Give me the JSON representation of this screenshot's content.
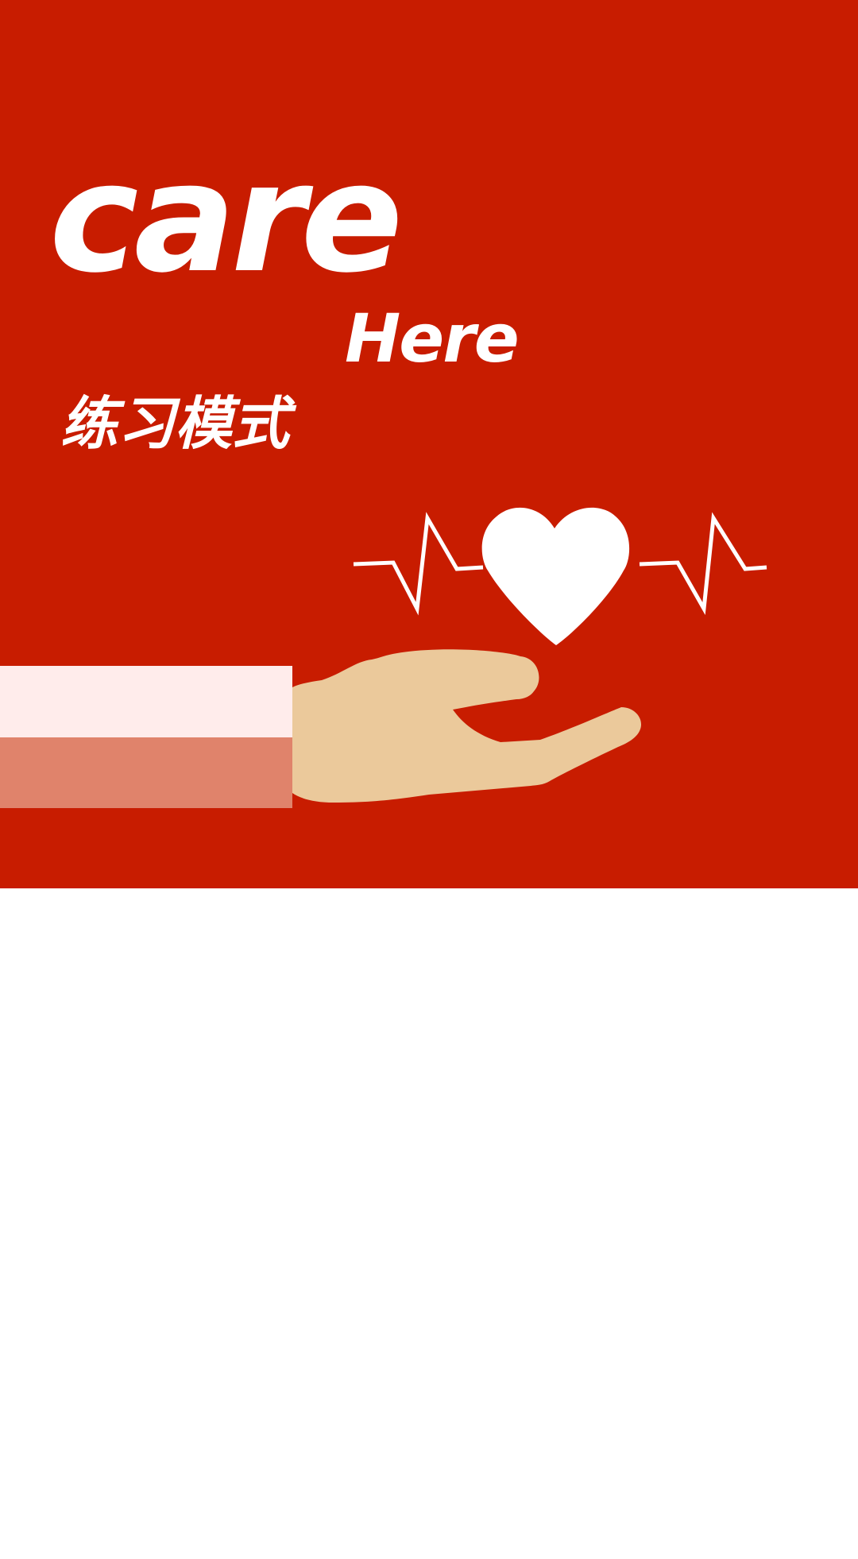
{
  "splash": {
    "logo_word_1": "care",
    "logo_word_2": "Here",
    "mode_title": "练习模式",
    "colors": {
      "background": "#c81c00",
      "text": "#ffffff",
      "heart": "#ffffff",
      "hand": "#ebc99b",
      "sleeve_light": "#ffeceb",
      "sleeve_dark": "#e0836b"
    },
    "icons": [
      "heartbeat-line-icon",
      "heart-icon",
      "hand-icon",
      "sleeve-icon"
    ]
  }
}
